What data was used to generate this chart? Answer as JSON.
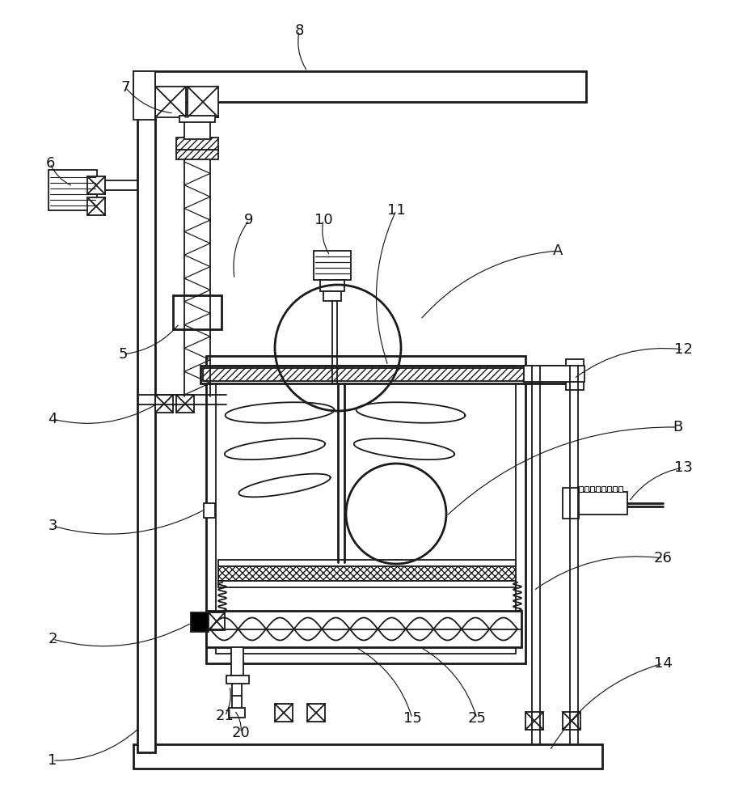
{
  "bg_color": "#ffffff",
  "lc": "#1a1a1a",
  "lw": 1.3,
  "lw2": 2.0,
  "labels": [
    [
      "1",
      65,
      940
    ],
    [
      "2",
      65,
      790
    ],
    [
      "3",
      65,
      650
    ],
    [
      "4",
      65,
      518
    ],
    [
      "5",
      152,
      438
    ],
    [
      "6",
      62,
      202
    ],
    [
      "7",
      155,
      108
    ],
    [
      "8",
      370,
      38
    ],
    [
      "9",
      308,
      272
    ],
    [
      "10",
      400,
      272
    ],
    [
      "11",
      490,
      260
    ],
    [
      "12",
      845,
      432
    ],
    [
      "13",
      845,
      578
    ],
    [
      "14",
      820,
      820
    ],
    [
      "15",
      510,
      888
    ],
    [
      "20",
      298,
      906
    ],
    [
      "21",
      278,
      885
    ],
    [
      "25",
      590,
      888
    ],
    [
      "26",
      820,
      690
    ],
    [
      "A",
      690,
      310
    ],
    [
      "B",
      838,
      528
    ]
  ]
}
